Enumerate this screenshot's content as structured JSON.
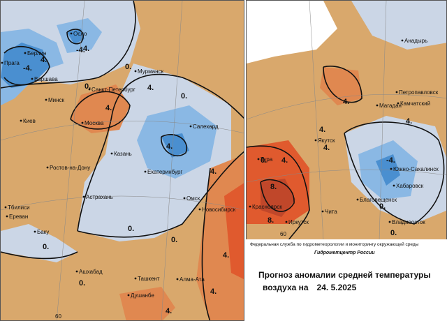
{
  "map": {
    "left_cities": [
      "Осло",
      "Берлин",
      "Прага",
      "Варшава",
      "Мурманск",
      "Санкт-Петербург",
      "Минск",
      "Киев",
      "Москва",
      "Салехард",
      "Казань",
      "Екатеринбург",
      "Ростов-на-Дону",
      "Астрахань",
      "Тбилиси",
      "Ереван",
      "Баку",
      "Омск",
      "Новосибирск",
      "Ашхабад",
      "Ташкент",
      "Алма-Ата",
      "Душанбе"
    ],
    "right_cities": [
      "Анадырь",
      "Петропавловск",
      "Камчатский",
      "Магадан",
      "Якутск",
      "Тура",
      "Южно-Сахалинск",
      "Хабаровск",
      "Благовещенск",
      "Красноярск",
      "Иркутск",
      "Чита",
      "Владивосток"
    ],
    "isolines": [
      "4.",
      "0.",
      "-4.",
      "8."
    ],
    "grid_labels": [
      "60",
      "60"
    ]
  },
  "legend": {
    "agency": "Федеральная служба по гидрометеорологии и мониторингу окружающей среды",
    "center": "Гидрометцентр России",
    "title_line1": "Прогноз аномалии средней температуры",
    "title_line2": "воздуха на",
    "date": "24. 5.2025"
  },
  "colors": {
    "blue_dark": "#4a8fd0",
    "blue_mid": "#8ab8e4",
    "blue_light": "#cbd6e6",
    "tan": "#d9a86c",
    "orange": "#e08850",
    "red": "#e05a2e"
  }
}
